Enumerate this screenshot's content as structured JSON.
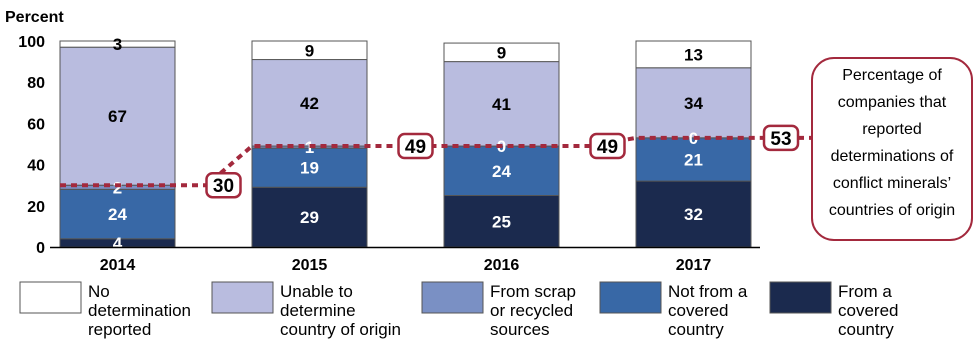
{
  "chart_data": {
    "type": "bar",
    "stacked": true,
    "ylabel": "Percent",
    "ylim": [
      0,
      100
    ],
    "yticks": [
      "0",
      "20",
      "40",
      "60",
      "80",
      "100"
    ],
    "categories": [
      "2014",
      "2015",
      "2016",
      "2017"
    ],
    "series": [
      {
        "name": "From a covered country",
        "color": "#1b2a4e",
        "values": [
          4,
          29,
          25,
          32
        ],
        "labels": [
          "4",
          "29",
          "25",
          "32"
        ]
      },
      {
        "name": "Not from a covered country",
        "color": "#3868a6",
        "values": [
          24,
          19,
          24,
          21
        ],
        "labels": [
          "24",
          "19",
          "24",
          "21"
        ]
      },
      {
        "name": "From scrap or recycled sources",
        "color": "#7a90c4",
        "values": [
          2,
          1,
          0,
          0
        ],
        "labels": [
          "2",
          "1",
          "0",
          "0"
        ]
      },
      {
        "name": "Unable to determine country of origin",
        "color": "#b9bcdf",
        "values": [
          67,
          42,
          41,
          34
        ],
        "labels": [
          "67",
          "42",
          "41",
          "34"
        ]
      },
      {
        "name": "No determination reported",
        "color": "#ffffff",
        "values": [
          3,
          9,
          9,
          13
        ],
        "labels": [
          "3",
          "9",
          "9",
          "13"
        ]
      }
    ],
    "legend": [
      {
        "lines": [
          "No",
          "determination",
          "reported"
        ],
        "color": "#ffffff"
      },
      {
        "lines": [
          "Unable to",
          "determine",
          "country of origin"
        ],
        "color": "#b9bcdf"
      },
      {
        "lines": [
          "From scrap",
          "or recycled",
          "sources"
        ],
        "color": "#7a90c4"
      },
      {
        "lines": [
          "Not from a",
          "covered",
          "country"
        ],
        "color": "#3868a6"
      },
      {
        "lines": [
          "From a",
          "covered",
          "country"
        ],
        "color": "#1b2a4e"
      }
    ],
    "determination_line": {
      "color": "#a3293d",
      "values": [
        30,
        49,
        49,
        53
      ],
      "labels": [
        "30",
        "49",
        "49",
        "53"
      ]
    },
    "annotation": {
      "lines": [
        "Percentage of",
        "companies that",
        "reported",
        "determinations of",
        "conflict minerals’",
        "countries of origin"
      ]
    },
    "grid": false,
    "legend_position": "bottom"
  }
}
